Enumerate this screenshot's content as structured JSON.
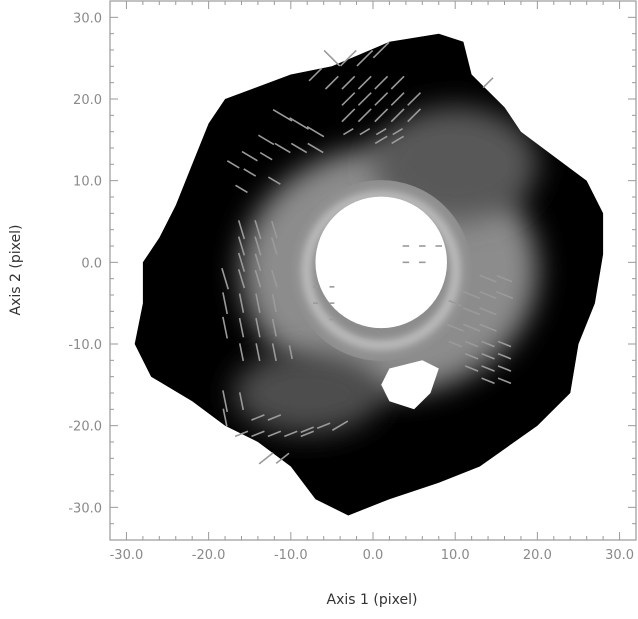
{
  "chart_data": {
    "type": "heatmap",
    "title": "",
    "xlabel": "Axis 1 (pixel)",
    "ylabel": "Axis 2 (pixel)",
    "xlim": [
      -32,
      32
    ],
    "ylim": [
      -34,
      32
    ],
    "x_ticks": [
      -30,
      -20,
      -10,
      0,
      10,
      20,
      30
    ],
    "y_ticks": [
      -30,
      -20,
      -10,
      0,
      10,
      20,
      30
    ],
    "x_tick_labels": [
      "-30.0",
      "-20.0",
      "-10.0",
      "0.0",
      "10.0",
      "20.0",
      "30.0"
    ],
    "y_tick_labels": [
      "-30.0",
      "-20.0",
      "-10.0",
      "0.0",
      "10.0",
      "20.0",
      "30.0"
    ],
    "colormap": "grayscale",
    "background_color": "#000000",
    "vector_color": "#9a9a9a",
    "map_outline": [
      [
        -18,
        20
      ],
      [
        -10,
        23
      ],
      [
        -5,
        24
      ],
      [
        2,
        27
      ],
      [
        8,
        28
      ],
      [
        11,
        27
      ],
      [
        12,
        23
      ],
      [
        16,
        19
      ],
      [
        18,
        16
      ],
      [
        22,
        13
      ],
      [
        26,
        10
      ],
      [
        28,
        6
      ],
      [
        28,
        1
      ],
      [
        27,
        -5
      ],
      [
        25,
        -10
      ],
      [
        24,
        -16
      ],
      [
        20,
        -20
      ],
      [
        13,
        -25
      ],
      [
        8,
        -27
      ],
      [
        2,
        -29
      ],
      [
        -3,
        -31
      ],
      [
        -7,
        -29
      ],
      [
        -10,
        -25
      ],
      [
        -14,
        -22
      ],
      [
        -18,
        -20
      ],
      [
        -22,
        -17
      ],
      [
        -27,
        -14
      ],
      [
        -29,
        -10
      ],
      [
        -28,
        -5
      ],
      [
        -28,
        0
      ],
      [
        -26,
        3
      ],
      [
        -24,
        7
      ],
      [
        -22,
        12
      ],
      [
        -20,
        17
      ]
    ],
    "bright_core": {
      "center": [
        1,
        0
      ],
      "radius": 8
    },
    "ring": {
      "center": [
        1,
        -1
      ],
      "inner_radius": 8.5,
      "outer_radius": 11
    },
    "secondary_blob": [
      [
        2,
        -13
      ],
      [
        6,
        -12
      ],
      [
        8,
        -13
      ],
      [
        7,
        -16
      ],
      [
        5,
        -18
      ],
      [
        2,
        -17
      ],
      [
        1,
        -15
      ]
    ],
    "diffuse_glow": [
      {
        "center": [
          2,
          -1
        ],
        "rx": 18,
        "ry": 15,
        "peak": 0.55
      },
      {
        "center": [
          10,
          12
        ],
        "rx": 10,
        "ry": 7,
        "peak": 0.35
      },
      {
        "center": [
          -8,
          -16
        ],
        "rx": 9,
        "ry": 5,
        "peak": 0.3
      }
    ],
    "vectors": [
      [
        -5,
        25,
        -1,
        1,
        2.5
      ],
      [
        -3,
        25,
        1,
        1,
        2.5
      ],
      [
        -1,
        25,
        1,
        1,
        2.5
      ],
      [
        1,
        26,
        1,
        1,
        2.5
      ],
      [
        -7,
        23,
        1,
        1,
        2
      ],
      [
        -5,
        22,
        1,
        1,
        2
      ],
      [
        -3,
        22,
        1,
        1,
        2
      ],
      [
        -1,
        22,
        1,
        1,
        2
      ],
      [
        1,
        22,
        1,
        1,
        2
      ],
      [
        3,
        22,
        1,
        1,
        2
      ],
      [
        -3,
        20,
        1,
        1,
        2
      ],
      [
        -1,
        20,
        1,
        1,
        2
      ],
      [
        1,
        20,
        1,
        1,
        2
      ],
      [
        3,
        20,
        1,
        1,
        2
      ],
      [
        5,
        20,
        1,
        1,
        2
      ],
      [
        -3,
        18,
        1,
        1,
        2
      ],
      [
        -1,
        18,
        1,
        1,
        2
      ],
      [
        1,
        18,
        1,
        1,
        2
      ],
      [
        3,
        18,
        1,
        1,
        2
      ],
      [
        5,
        18,
        1,
        1,
        2
      ],
      [
        -3,
        16,
        1,
        0.6,
        1.2
      ],
      [
        -1,
        16,
        1,
        0.6,
        1.2
      ],
      [
        1,
        16,
        1,
        0.6,
        1.2
      ],
      [
        3,
        16,
        1,
        0.6,
        1.2
      ],
      [
        1,
        15,
        1,
        0.6,
        1.5
      ],
      [
        3,
        15,
        1,
        0.6,
        1.5
      ],
      [
        14,
        22,
        1,
        1,
        1.5
      ],
      [
        -11,
        18,
        1,
        -0.6,
        2.5
      ],
      [
        -9,
        17,
        1,
        -0.6,
        2.5
      ],
      [
        -7,
        16,
        1,
        -0.6,
        2.2
      ],
      [
        -13,
        15,
        1,
        -0.6,
        2
      ],
      [
        -11,
        14,
        1,
        -0.6,
        2
      ],
      [
        -9,
        14,
        1,
        -0.6,
        2
      ],
      [
        -7,
        14,
        1,
        -0.6,
        2
      ],
      [
        -15,
        13,
        1,
        -0.6,
        2
      ],
      [
        -13,
        13,
        1,
        -0.6,
        1.5
      ],
      [
        -17,
        12,
        1,
        -0.6,
        1.5
      ],
      [
        -15,
        11,
        1,
        -0.6,
        1.5
      ],
      [
        -16,
        9,
        1,
        -0.6,
        1.5
      ],
      [
        -12,
        10,
        1,
        -0.6,
        1.5
      ],
      [
        -16,
        4,
        0.3,
        -1,
        2.2
      ],
      [
        -14,
        4,
        0.3,
        -1,
        2.2
      ],
      [
        -12,
        4,
        0.3,
        -1,
        2
      ],
      [
        -16,
        2,
        0.3,
        -1,
        2.2
      ],
      [
        -14,
        2,
        0.3,
        -1,
        2.2
      ],
      [
        -12,
        2,
        0.3,
        -1,
        2
      ],
      [
        -16,
        0,
        0.3,
        -1,
        2.2
      ],
      [
        -14,
        0,
        0.3,
        -1,
        2
      ],
      [
        -18,
        -2,
        0.3,
        -1,
        2.5
      ],
      [
        -16,
        -2,
        0.3,
        -1,
        2.2
      ],
      [
        -14,
        -2,
        0.3,
        -1,
        2
      ],
      [
        -12,
        -2,
        0.3,
        -1,
        2
      ],
      [
        -18,
        -5,
        0.2,
        -1,
        2.5
      ],
      [
        -16,
        -5,
        0.2,
        -1,
        2.2
      ],
      [
        -14,
        -5,
        0.2,
        -1,
        2.2
      ],
      [
        -12,
        -5,
        0.2,
        -1,
        2
      ],
      [
        -18,
        -8,
        0.2,
        -1,
        2.5
      ],
      [
        -16,
        -8,
        0.2,
        -1,
        2.2
      ],
      [
        -14,
        -8,
        0.2,
        -1,
        2.2
      ],
      [
        -12,
        -8,
        0.2,
        -1,
        2
      ],
      [
        -16,
        -11,
        0.2,
        -1,
        2
      ],
      [
        -14,
        -11,
        0.2,
        -1,
        2
      ],
      [
        -12,
        -11,
        0.2,
        -1,
        2
      ],
      [
        -10,
        -11,
        0.2,
        -1,
        1.5
      ],
      [
        -18,
        -17,
        0.2,
        -1,
        2.5
      ],
      [
        -16,
        -17,
        0.2,
        -1,
        2
      ],
      [
        -18,
        -19,
        0.2,
        -1,
        2
      ],
      [
        -14,
        -19,
        1,
        0.4,
        1.5
      ],
      [
        -12,
        -19,
        1,
        0.4,
        1.5
      ],
      [
        -16,
        -21,
        1,
        0.4,
        1.5
      ],
      [
        -14,
        -21,
        1,
        0.4,
        1.5
      ],
      [
        -12,
        -21,
        1,
        0.4,
        1.5
      ],
      [
        -10,
        -21,
        1,
        0.4,
        1.5
      ],
      [
        -8,
        -21,
        1,
        0.4,
        1.5
      ],
      [
        -6,
        -20,
        1,
        0.4,
        1.5
      ],
      [
        -8,
        -20.5,
        1,
        0.4,
        1.5
      ],
      [
        -4,
        -20,
        1,
        0.6,
        2
      ],
      [
        -13,
        -24,
        1,
        0.8,
        2
      ],
      [
        -11,
        -24,
        1,
        0.8,
        1.8
      ],
      [
        10,
        -8,
        1,
        -0.4,
        2
      ],
      [
        12,
        -8,
        1,
        -0.4,
        2
      ],
      [
        14,
        -8,
        1,
        -0.4,
        2
      ],
      [
        12,
        -6,
        1,
        -0.4,
        2
      ],
      [
        14,
        -6,
        1,
        -0.4,
        2
      ],
      [
        10,
        -5,
        1,
        -0.4,
        1.5
      ],
      [
        12,
        -4,
        1,
        -0.4,
        2
      ],
      [
        14,
        -4,
        1,
        -0.4,
        2
      ],
      [
        16,
        -4,
        1,
        -0.4,
        2
      ],
      [
        14,
        -2,
        1,
        -0.4,
        2
      ],
      [
        16,
        -2,
        1,
        -0.4,
        1.8
      ],
      [
        10,
        -10,
        1,
        -0.4,
        1.5
      ],
      [
        12,
        -10,
        1,
        -0.4,
        1.5
      ],
      [
        14,
        -10,
        1,
        -0.4,
        1.5
      ],
      [
        16,
        -10,
        1,
        -0.4,
        1.5
      ],
      [
        12,
        -11.5,
        1,
        -0.4,
        1.5
      ],
      [
        14,
        -11.5,
        1,
        -0.4,
        1.5
      ],
      [
        16,
        -11.5,
        1,
        -0.4,
        1.5
      ],
      [
        12,
        -13,
        1,
        -0.4,
        1.5
      ],
      [
        14,
        -13,
        1,
        -0.4,
        1.5
      ],
      [
        16,
        -13,
        1,
        -0.4,
        1.5
      ],
      [
        14,
        -14.5,
        1,
        -0.4,
        1.5
      ],
      [
        16,
        -14.5,
        1,
        -0.4,
        1.5
      ],
      [
        4,
        2,
        1,
        0,
        0.6
      ],
      [
        6,
        2,
        1,
        0,
        0.6
      ],
      [
        8,
        2,
        1,
        0,
        0.6
      ],
      [
        4,
        0,
        1,
        0,
        0.6
      ],
      [
        6,
        0,
        1,
        0,
        0.6
      ],
      [
        -7,
        -3,
        1,
        0,
        0.4
      ],
      [
        -5,
        -3,
        1,
        0,
        0.4
      ],
      [
        -7,
        -5,
        1,
        0,
        0.4
      ],
      [
        -5,
        -5,
        1,
        0,
        0.4
      ],
      [
        -5,
        -7,
        1,
        0,
        0.4
      ]
    ]
  }
}
